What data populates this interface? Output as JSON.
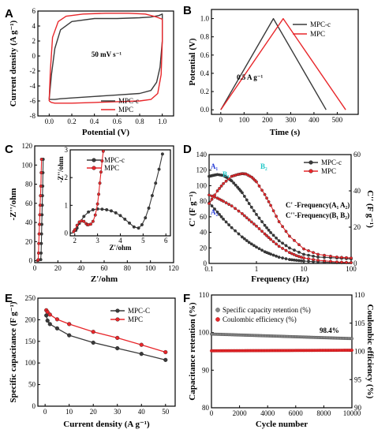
{
  "colors": {
    "mpc_c": "#3a3a3a",
    "mpc": "#e8262a",
    "cyan": "#1fc7c7",
    "blue": "#2a3fd6"
  },
  "chart_data": [
    {
      "panel": "A",
      "type": "line",
      "title": "",
      "xlabel": "Potential (V)",
      "ylabel": "Current density (A g⁻¹)",
      "xlim": [
        -0.1,
        1.1
      ],
      "ylim": [
        -8,
        6
      ],
      "xticks": [
        "0.0",
        "0.2",
        "0.4",
        "0.6",
        "0.8",
        "1.0"
      ],
      "xtick_values": [
        0,
        0.2,
        0.4,
        0.6,
        0.8,
        1.0
      ],
      "yticks": [
        "-8",
        "-6",
        "-4",
        "-2",
        "0",
        "2",
        "4",
        "6"
      ],
      "ytick_values": [
        -8,
        -6,
        -4,
        -2,
        0,
        2,
        4,
        6
      ],
      "annotation": "50 mV s⁻¹",
      "legend_position": "bottom-right",
      "series": [
        {
          "name": "MPC-c",
          "x": [
            0.0,
            0.02,
            0.05,
            0.1,
            0.2,
            0.4,
            0.6,
            0.8,
            0.9,
            0.97,
            1.0,
            1.0,
            0.98,
            0.95,
            0.9,
            0.8,
            0.6,
            0.4,
            0.2,
            0.1,
            0.05,
            0.02,
            0.0
          ],
          "y": [
            -5.8,
            -2.5,
            1.0,
            3.5,
            4.6,
            5.0,
            5.0,
            5.1,
            5.2,
            5.4,
            5.6,
            2.0,
            -1.5,
            -3.5,
            -4.6,
            -5.0,
            -5.2,
            -5.4,
            -5.6,
            -5.7,
            -5.8,
            -5.8,
            -5.8
          ]
        },
        {
          "name": "MPC",
          "x": [
            0.0,
            0.01,
            0.03,
            0.08,
            0.15,
            0.3,
            0.5,
            0.7,
            0.85,
            0.95,
            1.0,
            1.0,
            0.99,
            0.96,
            0.9,
            0.8,
            0.6,
            0.4,
            0.2,
            0.1,
            0.05,
            0.02,
            0.0
          ],
          "y": [
            -6.0,
            -2.0,
            2.5,
            4.6,
            5.3,
            5.6,
            5.7,
            5.7,
            5.6,
            5.2,
            4.9,
            2.0,
            -2.5,
            -5.0,
            -5.8,
            -6.0,
            -6.1,
            -6.2,
            -6.3,
            -6.3,
            -6.3,
            -6.2,
            -6.0
          ]
        }
      ]
    },
    {
      "panel": "B",
      "type": "line",
      "title": "",
      "xlabel": "Time (s)",
      "ylabel": "Potential (V)",
      "xlim": [
        -40,
        590
      ],
      "ylim": [
        -0.05,
        1.1
      ],
      "xticks": [
        "0",
        "100",
        "200",
        "300",
        "400",
        "500"
      ],
      "xtick_values": [
        0,
        100,
        200,
        300,
        400,
        500
      ],
      "yticks": [
        "0.0",
        "0.2",
        "0.4",
        "0.6",
        "0.8",
        "1.0"
      ],
      "ytick_values": [
        0,
        0.2,
        0.4,
        0.6,
        0.8,
        1.0
      ],
      "annotation": "0.5 A g⁻¹",
      "legend_position": "top-right",
      "series": [
        {
          "name": "MPC-c",
          "x": [
            0,
            226,
            452
          ],
          "y": [
            0,
            1.0,
            0
          ]
        },
        {
          "name": "MPC",
          "x": [
            0,
            268,
            536
          ],
          "y": [
            0,
            1.0,
            0
          ]
        }
      ]
    },
    {
      "panel": "C",
      "type": "scatter",
      "title": "",
      "xlabel": "Z'/ohm",
      "ylabel": "-Z''/ohm",
      "xlim": [
        0,
        120
      ],
      "ylim": [
        -2,
        120
      ],
      "xticks": [
        "0",
        "20",
        "40",
        "60",
        "80",
        "100",
        "120"
      ],
      "xtick_values": [
        0,
        20,
        40,
        60,
        80,
        100,
        120
      ],
      "yticks": [
        "0",
        "20",
        "40",
        "60",
        "80",
        "100",
        "120"
      ],
      "ytick_values": [
        0,
        20,
        40,
        60,
        80,
        100,
        120
      ],
      "series": [
        {
          "name": "MPC-c",
          "x": [
            3.0,
            5.2,
            5.5,
            5.7,
            5.9,
            6.1,
            6.3,
            6.5,
            6.7,
            6.9,
            7.1,
            7.3
          ],
          "y": [
            0.5,
            1.2,
            8,
            18,
            28,
            38,
            48,
            58,
            68,
            78,
            92,
            106
          ]
        },
        {
          "name": "MPC",
          "x": [
            2.5,
            3.0,
            3.3,
            3.5,
            3.8,
            4.1,
            4.4,
            4.7,
            5.0,
            5.3,
            5.6,
            5.9
          ],
          "y": [
            0.3,
            1.0,
            8,
            18,
            28,
            38,
            48,
            58,
            68,
            78,
            92,
            106
          ]
        }
      ],
      "inset": {
        "xlabel": "Z'/ohm",
        "ylabel": "-Z''/ohm",
        "xlim": [
          1.8,
          6.2
        ],
        "ylim": [
          -0.1,
          3.0
        ],
        "xticks": [
          "2",
          "3",
          "4",
          "5",
          "6"
        ],
        "xtick_values": [
          2,
          3,
          4,
          5,
          6
        ],
        "yticks": [
          "0",
          "1",
          "2",
          "3"
        ],
        "ytick_values": [
          0,
          1,
          2,
          3
        ],
        "legend_position": "top-left",
        "series": [
          {
            "name": "MPC-c",
            "x": [
              2.05,
              2.1,
              2.2,
              2.4,
              2.6,
              2.8,
              3.0,
              3.2,
              3.4,
              3.6,
              3.8,
              4.0,
              4.2,
              4.4,
              4.6,
              4.8,
              4.95,
              5.1,
              5.25,
              5.4,
              5.55,
              5.7,
              5.85
            ],
            "y": [
              0.1,
              0.18,
              0.35,
              0.6,
              0.76,
              0.84,
              0.87,
              0.86,
              0.84,
              0.8,
              0.73,
              0.63,
              0.5,
              0.36,
              0.22,
              0.18,
              0.3,
              0.55,
              0.9,
              1.35,
              1.8,
              2.3,
              2.85
            ]
          },
          {
            "name": "MPC",
            "x": [
              1.95,
              2.0,
              2.1,
              2.2,
              2.3,
              2.4,
              2.5,
              2.55,
              2.6,
              2.7,
              2.8,
              2.9,
              3.0,
              3.05,
              3.1,
              3.15,
              3.2,
              3.25
            ],
            "y": [
              0.05,
              0.12,
              0.28,
              0.4,
              0.44,
              0.42,
              0.34,
              0.3,
              0.3,
              0.32,
              0.42,
              0.65,
              1.05,
              1.4,
              1.8,
              2.2,
              2.6,
              2.95
            ]
          }
        ]
      }
    },
    {
      "panel": "D",
      "type": "line",
      "title": "",
      "xlabel": "Frequency (Hz)",
      "ylabel": "C' (F g⁻¹)",
      "y2label": "C'' (F g⁻¹)",
      "xscale": "log",
      "xlim": [
        0.1,
        100
      ],
      "ylim": [
        0,
        140
      ],
      "y2lim": [
        0,
        60
      ],
      "xticks": [
        "0.1",
        "1",
        "10",
        "100"
      ],
      "xtick_values": [
        0.1,
        1,
        10,
        100
      ],
      "yticks": [
        "0",
        "20",
        "40",
        "60",
        "80",
        "100",
        "120",
        "140"
      ],
      "ytick_values": [
        0,
        20,
        40,
        60,
        80,
        100,
        120,
        140
      ],
      "y2ticks": [
        "0",
        "20",
        "40",
        "60"
      ],
      "y2tick_values": [
        0,
        20,
        40,
        60
      ],
      "legend": [
        "MPC-c",
        "MPC"
      ],
      "legend_position": "top-right",
      "annotations": [
        "A₁",
        "A₂",
        "B₁",
        "B₂",
        "C' -Frequency(A₁ A₂)",
        "C''-Frequency(B₁ B₂)"
      ],
      "series": [
        {
          "name": "MPC-c C'",
          "x": [
            0.1,
            0.15,
            0.2,
            0.3,
            0.5,
            0.7,
            1,
            1.5,
            2,
            3,
            5,
            7,
            10,
            20,
            50,
            100
          ],
          "y": [
            78,
            66,
            57,
            46,
            34,
            27,
            21,
            15,
            12,
            8,
            5,
            4,
            3,
            2,
            1,
            1
          ]
        },
        {
          "name": "MPC C'",
          "x": [
            0.1,
            0.15,
            0.2,
            0.3,
            0.5,
            0.7,
            1,
            1.5,
            2,
            3,
            5,
            7,
            10,
            20,
            50,
            100
          ],
          "y": [
            88,
            84,
            80,
            74,
            64,
            56,
            48,
            38,
            31,
            22,
            14,
            10,
            7,
            4,
            2,
            1
          ]
        },
        {
          "name": "MPC-c C''",
          "x": [
            0.1,
            0.12,
            0.15,
            0.2,
            0.25,
            0.3,
            0.4,
            0.5,
            0.7,
            1,
            1.5,
            2,
            3,
            5,
            10,
            20,
            50,
            100
          ],
          "y": [
            48,
            48.5,
            49,
            48.5,
            47,
            45.5,
            42,
            39,
            33,
            27,
            21,
            17,
            12.5,
            8.5,
            5,
            3.5,
            3,
            2.5
          ]
        },
        {
          "name": "MPC C''",
          "x": [
            0.1,
            0.15,
            0.2,
            0.3,
            0.4,
            0.5,
            0.6,
            0.8,
            1,
            1.5,
            2,
            3,
            5,
            10,
            20,
            50,
            100
          ],
          "y": [
            33,
            40,
            44,
            48,
            49,
            49.5,
            49.3,
            47.5,
            45,
            38,
            32,
            23,
            15,
            8,
            5,
            3.5,
            3
          ]
        }
      ]
    },
    {
      "panel": "E",
      "type": "line",
      "title": "",
      "xlabel": "Current density (A g⁻¹)",
      "ylabel": "Specific capacitance (F g⁻¹)",
      "xlim": [
        -3,
        54
      ],
      "ylim": [
        0,
        250
      ],
      "xticks": [
        "0",
        "10",
        "20",
        "30",
        "40",
        "50"
      ],
      "xtick_values": [
        0,
        10,
        20,
        30,
        40,
        50
      ],
      "yticks": [
        "0",
        "50",
        "100",
        "150",
        "200",
        "250"
      ],
      "ytick_values": [
        0,
        50,
        100,
        150,
        200,
        250
      ],
      "legend_position": "top-right",
      "series": [
        {
          "name": "MPC-C",
          "x": [
            0.5,
            1,
            2,
            5,
            10,
            20,
            30,
            40,
            50
          ],
          "y": [
            210,
            198,
            190,
            180,
            164,
            147,
            134,
            121,
            107
          ]
        },
        {
          "name": "MPC",
          "x": [
            0.5,
            1,
            2,
            5,
            10,
            20,
            30,
            40,
            50
          ],
          "y": [
            222,
            218,
            212,
            201,
            190,
            172,
            158,
            142,
            125
          ]
        }
      ]
    },
    {
      "panel": "F",
      "type": "scatter",
      "title": "",
      "xlabel": "Cycle number",
      "ylabel": "Capacitance retention (%)",
      "y2label": "Coulombic efficiency (%)",
      "xlim": [
        0,
        10000
      ],
      "ylim": [
        80,
        110
      ],
      "y2lim": [
        90,
        110
      ],
      "xticks": [
        "0",
        "2000",
        "4000",
        "6000",
        "8000",
        "10000"
      ],
      "xtick_values": [
        0,
        2000,
        4000,
        6000,
        8000,
        10000
      ],
      "yticks": [
        "80",
        "90",
        "100",
        "110"
      ],
      "ytick_values": [
        80,
        90,
        100,
        110
      ],
      "y2ticks": [
        "90",
        "95",
        "100",
        "105",
        "110"
      ],
      "y2tick_values": [
        90,
        95,
        100,
        105,
        110
      ],
      "annotation": "98.4%",
      "legend_position": "top-left",
      "series": [
        {
          "name": "Specific capacity retention (%)",
          "x_start": 0,
          "x_end": 10000,
          "y_start": 99.6,
          "y_end": 98.4
        },
        {
          "name": "Coulombic efficiency (%)",
          "x_start": 0,
          "x_end": 10000,
          "y_start": 100.1,
          "y_end": 100.2
        }
      ]
    }
  ]
}
